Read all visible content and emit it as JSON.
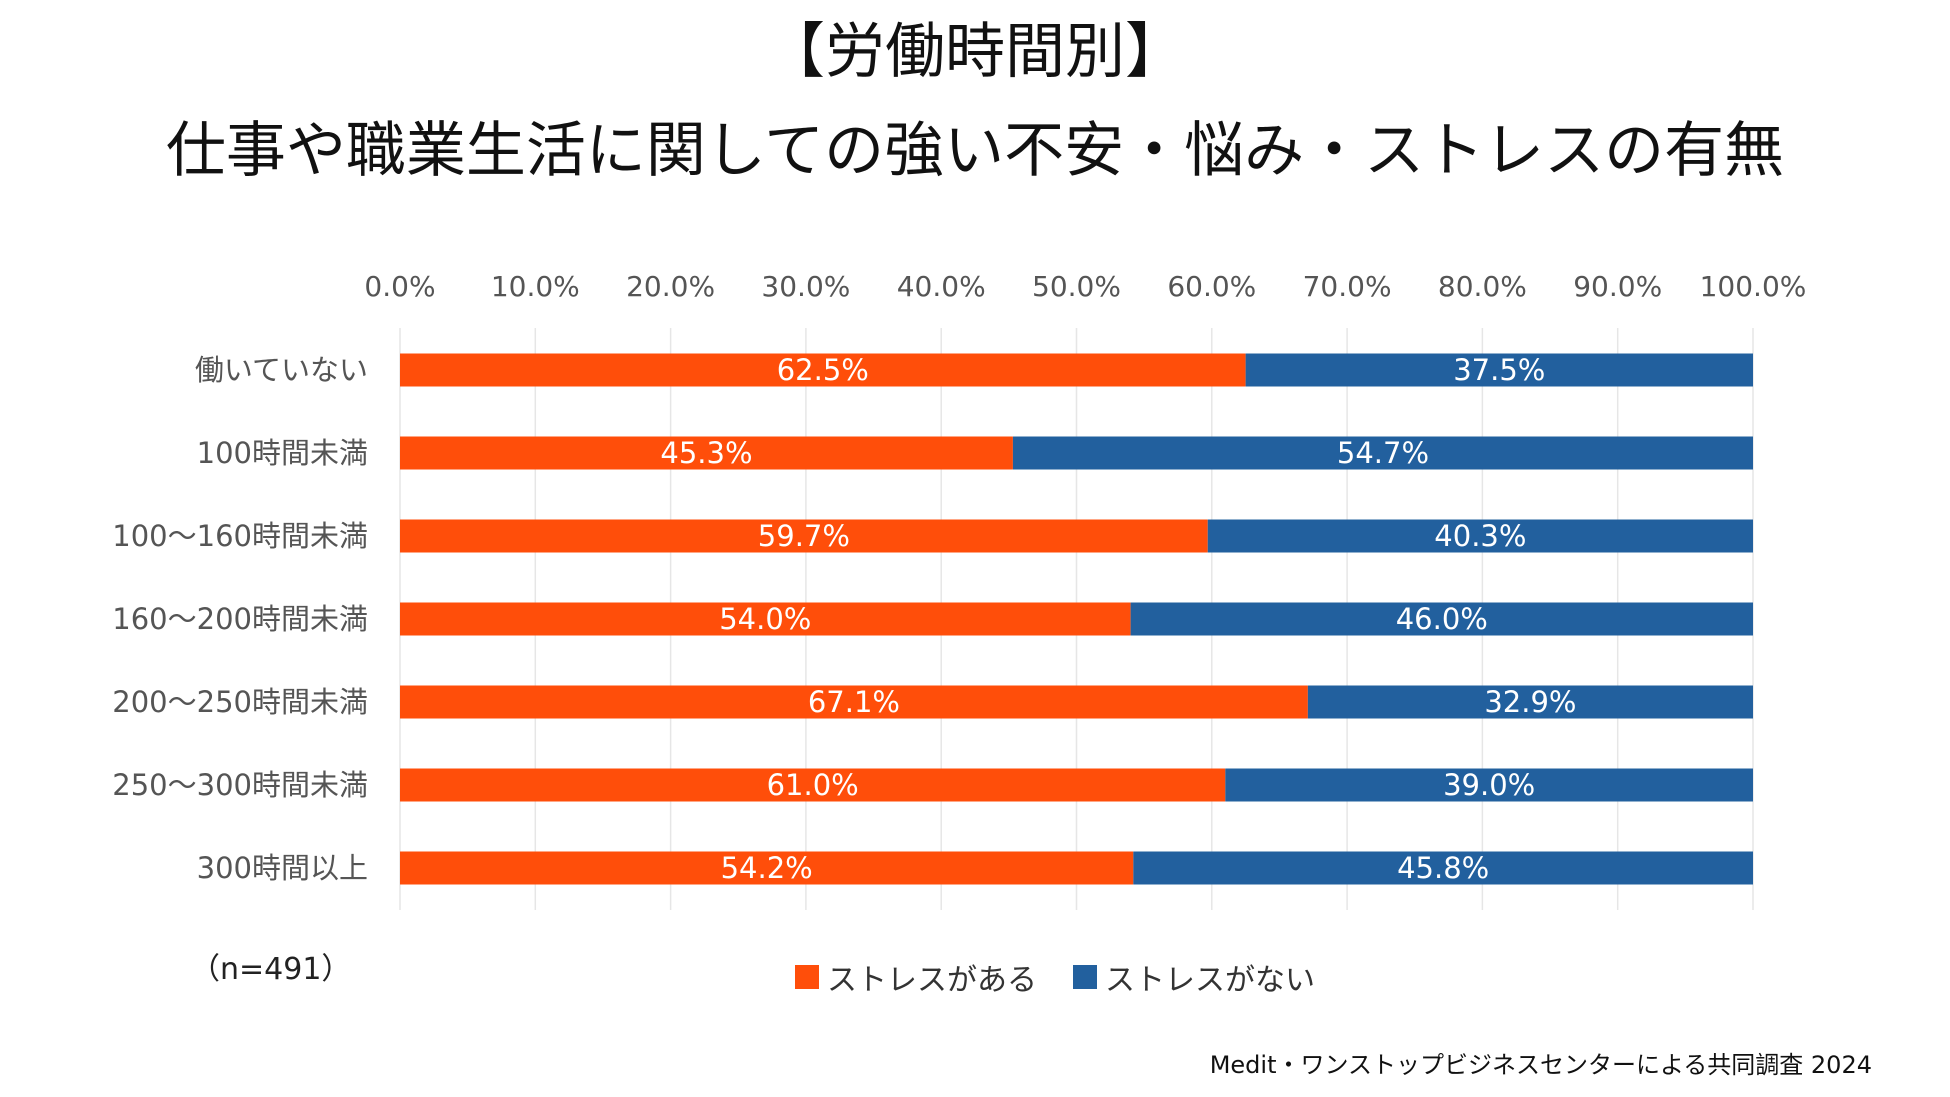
{
  "title": {
    "line1": "【労働時間別】",
    "line2": "仕事や職業生活に関しての強い不安・悩み・ストレスの有無"
  },
  "colors": {
    "stress_yes": "#ff4e0a",
    "stress_no": "#22609e",
    "grid": "#e6e6e6",
    "tick_text": "#555555",
    "category_text": "#555555",
    "data_label_text": "#ffffff"
  },
  "chart_data": {
    "type": "bar",
    "orientation": "horizontal",
    "stacked": true,
    "categories": [
      "働いていない",
      "100時間未満",
      "100～160時間未満",
      "160～200時間未満",
      "200～250時間未満",
      "250～300時間未満",
      "300時間以上"
    ],
    "series": [
      {
        "name": "ストレスがある",
        "values": [
          62.5,
          45.3,
          59.7,
          54.0,
          67.1,
          61.0,
          54.2
        ],
        "labels": [
          "62.5%",
          "45.3%",
          "59.7%",
          "54.0%",
          "67.1%",
          "61.0%",
          "54.2%"
        ]
      },
      {
        "name": "ストレスがない",
        "values": [
          37.5,
          54.7,
          40.3,
          46.0,
          32.9,
          39.0,
          45.8
        ],
        "labels": [
          "37.5%",
          "54.7%",
          "40.3%",
          "46.0%",
          "32.9%",
          "39.0%",
          "45.8%"
        ]
      }
    ],
    "xlim": [
      0,
      100
    ],
    "xticks": [
      0,
      10,
      20,
      30,
      40,
      50,
      60,
      70,
      80,
      90,
      100
    ],
    "xtick_labels": [
      "0.0%",
      "10.0%",
      "20.0%",
      "30.0%",
      "40.0%",
      "50.0%",
      "60.0%",
      "70.0%",
      "80.0%",
      "90.0%",
      "100.0%"
    ],
    "x_axis_position": "top",
    "grid": true,
    "legend_position": "bottom",
    "xlabel": "",
    "ylabel": ""
  },
  "sample_size": "（n=491）",
  "source": "Medit・ワンストップビジネスセンターによる共同調査 2024"
}
